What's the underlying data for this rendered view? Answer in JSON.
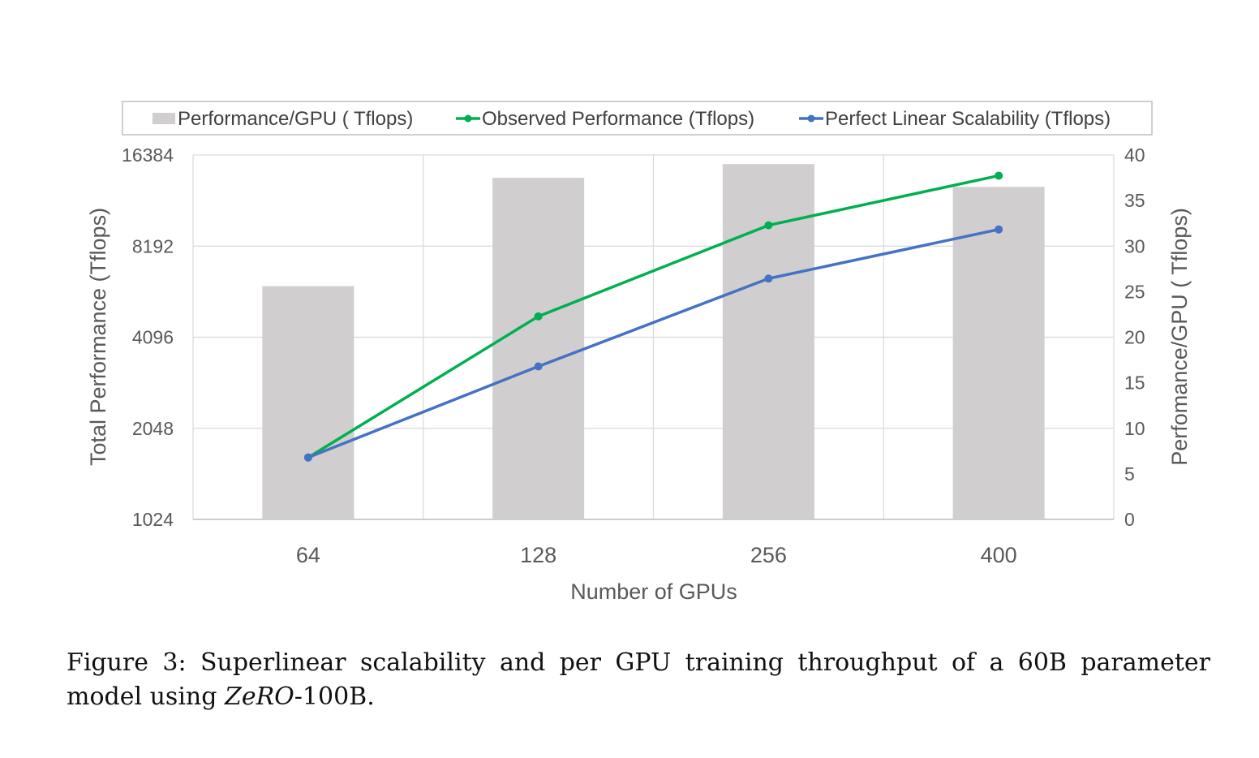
{
  "chart_data": {
    "type": "bar+line",
    "categories": [
      "64",
      "128",
      "256",
      "400"
    ],
    "xlabel": "Number of GPUs",
    "ylabel_left": "Total Performance (Tflops)",
    "ylabel_right": "Perfomance/GPU ( Tflops)",
    "left_axis": {
      "scale": "log2",
      "min": 1024,
      "max": 16384,
      "ticks": [
        "16384",
        "8192",
        "4096",
        "2048",
        "1024"
      ]
    },
    "right_axis": {
      "scale": "linear",
      "min": 0,
      "max": 40,
      "ticks": [
        "40",
        "35",
        "30",
        "25",
        "20",
        "15",
        "10",
        "5",
        "0"
      ]
    },
    "grid": true,
    "legend_position": "top",
    "series": [
      {
        "name": "Performance/GPU ( Tflops)",
        "type": "bar",
        "axis": "right",
        "color": "#d0cece",
        "values": [
          25.6,
          37.5,
          39.0,
          36.5
        ]
      },
      {
        "name": "Observed Performance (Tflops)",
        "type": "line",
        "axis": "left",
        "color": "#00b050",
        "values": [
          1640,
          4800,
          9600,
          14000
        ]
      },
      {
        "name": "Perfect Linear Scalability (Tflops)",
        "type": "line",
        "axis": "left",
        "color": "#4472c4",
        "values": [
          1640,
          3280,
          6400,
          9300
        ]
      }
    ]
  },
  "caption": {
    "label": "Figure 3:",
    "text_before": "Superlinear scalability and per GPU training throughput of a 60B parameter model using",
    "emphasis": "ZeRO",
    "text_after": "-100B."
  }
}
